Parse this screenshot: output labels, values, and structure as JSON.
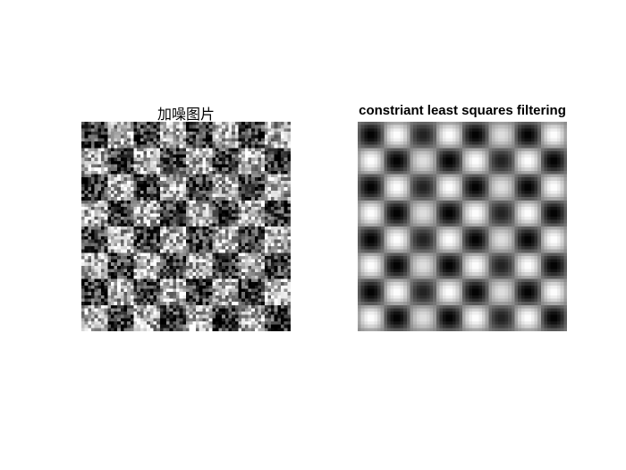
{
  "figure": {
    "left_panel": {
      "title": "加噪图片",
      "image": {
        "description_key": "noisy-checkerboard",
        "tiles_per_side": 8
      }
    },
    "right_panel": {
      "title": "constriant least squares filtering",
      "image": {
        "description_key": "filtered-checkerboard",
        "tiles_per_side": 8
      }
    }
  }
}
